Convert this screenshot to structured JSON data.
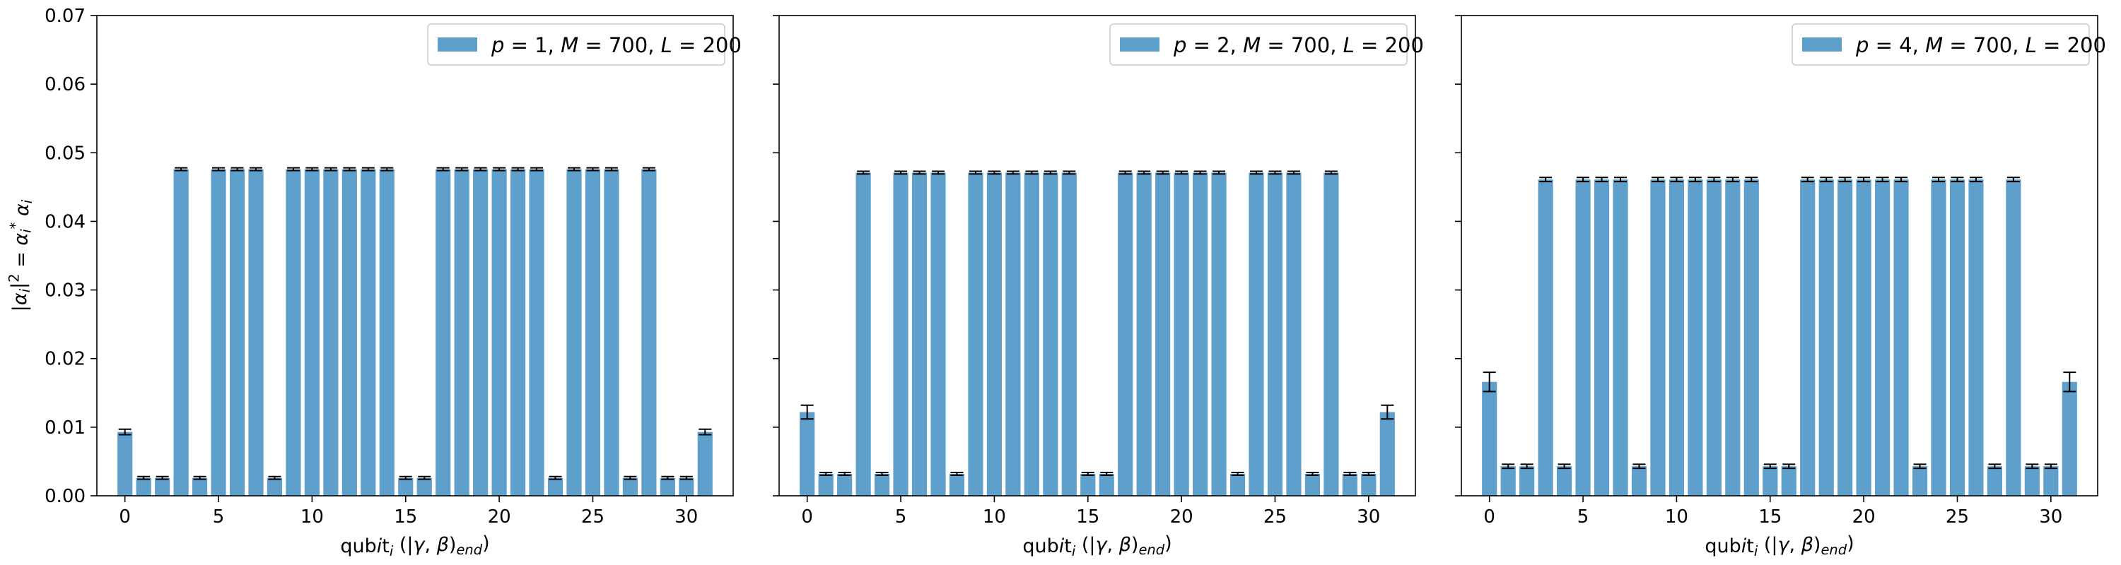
{
  "chart_data": [
    {
      "type": "bar",
      "legend": [
        "p = 1, M = 700, L = 200"
      ],
      "legend_position": "top-right",
      "xlabel": "qubit_i (|γ, β)_end)",
      "ylabel": "|α_i|² = α_i* α_i",
      "x": [
        0,
        1,
        2,
        3,
        4,
        5,
        6,
        7,
        8,
        9,
        10,
        11,
        12,
        13,
        14,
        15,
        16,
        17,
        18,
        19,
        20,
        21,
        22,
        23,
        24,
        25,
        26,
        27,
        28,
        29,
        30,
        31
      ],
      "values": [
        0.0093,
        0.0026,
        0.0026,
        0.0476,
        0.0026,
        0.0476,
        0.0476,
        0.0476,
        0.0026,
        0.0476,
        0.0476,
        0.0476,
        0.0476,
        0.0476,
        0.0476,
        0.0026,
        0.0026,
        0.0476,
        0.0476,
        0.0476,
        0.0476,
        0.0476,
        0.0476,
        0.0026,
        0.0476,
        0.0476,
        0.0476,
        0.0026,
        0.0476,
        0.0026,
        0.0026,
        0.0093
      ],
      "errors": [
        0.0004,
        0.0002,
        0.0002,
        0.0002,
        0.0002,
        0.0002,
        0.0002,
        0.0002,
        0.0002,
        0.0002,
        0.0002,
        0.0002,
        0.0002,
        0.0002,
        0.0002,
        0.0002,
        0.0002,
        0.0002,
        0.0002,
        0.0002,
        0.0002,
        0.0002,
        0.0002,
        0.0002,
        0.0002,
        0.0002,
        0.0002,
        0.0002,
        0.0002,
        0.0002,
        0.0002,
        0.0004
      ],
      "xticks": [
        0,
        5,
        10,
        15,
        20,
        25,
        30
      ],
      "yticks": [
        0.0,
        0.01,
        0.02,
        0.03,
        0.04,
        0.05,
        0.06,
        0.07
      ],
      "xlim": [
        -1.5,
        32.5
      ],
      "ylim": [
        0,
        0.07
      ],
      "show_yticklabels": true
    },
    {
      "type": "bar",
      "legend": [
        "p = 2, M = 700, L = 200"
      ],
      "legend_position": "top-right",
      "xlabel": "qubit_i (|γ, β)_end)",
      "ylabel": "",
      "x": [
        0,
        1,
        2,
        3,
        4,
        5,
        6,
        7,
        8,
        9,
        10,
        11,
        12,
        13,
        14,
        15,
        16,
        17,
        18,
        19,
        20,
        21,
        22,
        23,
        24,
        25,
        26,
        27,
        28,
        29,
        30,
        31
      ],
      "values": [
        0.0122,
        0.0032,
        0.0032,
        0.0471,
        0.0032,
        0.0471,
        0.0471,
        0.0471,
        0.0032,
        0.0471,
        0.0471,
        0.0471,
        0.0471,
        0.0471,
        0.0471,
        0.0032,
        0.0032,
        0.0471,
        0.0471,
        0.0471,
        0.0471,
        0.0471,
        0.0471,
        0.0032,
        0.0471,
        0.0471,
        0.0471,
        0.0032,
        0.0471,
        0.0032,
        0.0032,
        0.0122
      ],
      "errors": [
        0.001,
        0.0002,
        0.0002,
        0.0002,
        0.0002,
        0.0002,
        0.0002,
        0.0002,
        0.0002,
        0.0002,
        0.0002,
        0.0002,
        0.0002,
        0.0002,
        0.0002,
        0.0002,
        0.0002,
        0.0002,
        0.0002,
        0.0002,
        0.0002,
        0.0002,
        0.0002,
        0.0002,
        0.0002,
        0.0002,
        0.0002,
        0.0002,
        0.0002,
        0.0002,
        0.0002,
        0.001
      ],
      "xticks": [
        0,
        5,
        10,
        15,
        20,
        25,
        30
      ],
      "yticks": [
        0.0,
        0.01,
        0.02,
        0.03,
        0.04,
        0.05,
        0.06,
        0.07
      ],
      "xlim": [
        -1.5,
        32.5
      ],
      "ylim": [
        0,
        0.07
      ],
      "show_yticklabels": false
    },
    {
      "type": "bar",
      "legend": [
        "p = 4, M = 700, L = 200"
      ],
      "legend_position": "top-right",
      "xlabel": "qubit_i (|γ, β)_end)",
      "ylabel": "",
      "x": [
        0,
        1,
        2,
        3,
        4,
        5,
        6,
        7,
        8,
        9,
        10,
        11,
        12,
        13,
        14,
        15,
        16,
        17,
        18,
        19,
        20,
        21,
        22,
        23,
        24,
        25,
        26,
        27,
        28,
        29,
        30,
        31
      ],
      "values": [
        0.0166,
        0.0043,
        0.0043,
        0.0461,
        0.0043,
        0.0461,
        0.0461,
        0.0461,
        0.0043,
        0.0461,
        0.0461,
        0.0461,
        0.0461,
        0.0461,
        0.0461,
        0.0043,
        0.0043,
        0.0461,
        0.0461,
        0.0461,
        0.0461,
        0.0461,
        0.0461,
        0.0043,
        0.0461,
        0.0461,
        0.0461,
        0.0043,
        0.0461,
        0.0043,
        0.0043,
        0.0166
      ],
      "errors": [
        0.0014,
        0.0003,
        0.0003,
        0.0003,
        0.0003,
        0.0003,
        0.0003,
        0.0003,
        0.0003,
        0.0003,
        0.0003,
        0.0003,
        0.0003,
        0.0003,
        0.0003,
        0.0003,
        0.0003,
        0.0003,
        0.0003,
        0.0003,
        0.0003,
        0.0003,
        0.0003,
        0.0003,
        0.0003,
        0.0003,
        0.0003,
        0.0003,
        0.0003,
        0.0003,
        0.0003,
        0.0014
      ],
      "xticks": [
        0,
        5,
        10,
        15,
        20,
        25,
        30
      ],
      "yticks": [
        0.0,
        0.01,
        0.02,
        0.03,
        0.04,
        0.05,
        0.06,
        0.07
      ],
      "xlim": [
        -1.5,
        32.5
      ],
      "ylim": [
        0,
        0.07
      ],
      "show_yticklabels": false
    }
  ],
  "colors": {
    "bar": "#5f9fcc",
    "axis": "#000000",
    "errorbar": "#000000"
  }
}
